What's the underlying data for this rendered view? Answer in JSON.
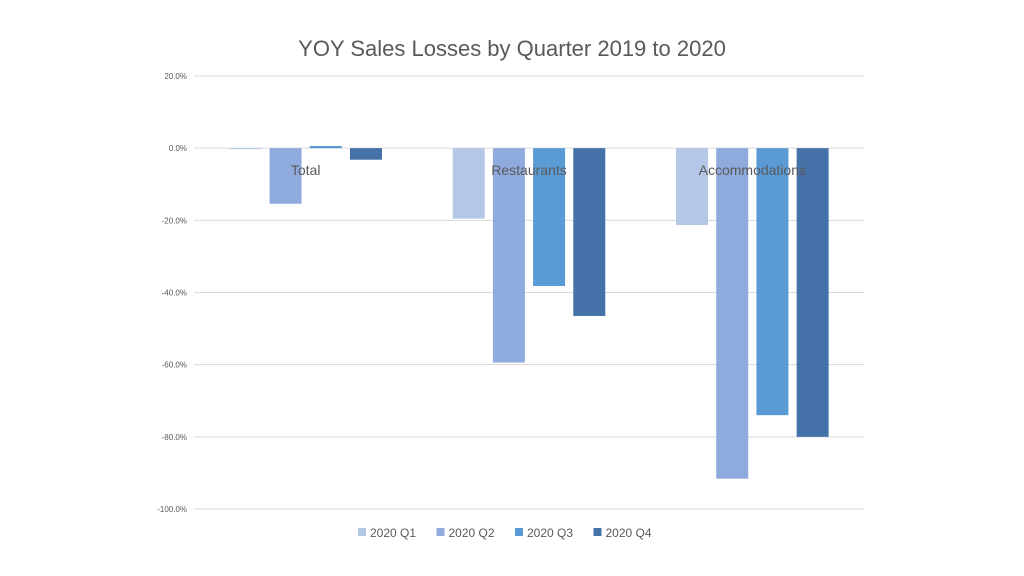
{
  "chart_data": {
    "type": "bar",
    "title": "YOY Sales Losses by Quarter 2019 to 2020",
    "categories": [
      "Total",
      "Restaurants",
      "Accommodations"
    ],
    "series": [
      {
        "name": "2020 Q1",
        "color": "#b4c7e7",
        "values": [
          -0.2,
          -19.5,
          -21.3
        ]
      },
      {
        "name": "2020 Q2",
        "color": "#8faadc",
        "values": [
          -15.4,
          -59.4,
          -91.6
        ]
      },
      {
        "name": "2020 Q3",
        "color": "#5b9bd5",
        "values": [
          0.6,
          -38.2,
          -74.0
        ]
      },
      {
        "name": "2020 Q4",
        "color": "#4472a8",
        "values": [
          -3.2,
          -46.5,
          -80.0
        ]
      }
    ],
    "ylim": [
      -100,
      20
    ],
    "yticks": [
      20,
      0,
      -20,
      -40,
      -60,
      -80,
      -100
    ],
    "ytick_labels": [
      "20.0%",
      "0.0%",
      "-20.0%",
      "-40.0%",
      "-60.0%",
      "-80.0%",
      "-100.0%"
    ],
    "grid": true,
    "legend_position": "bottom",
    "category_label_position": "on zero line"
  }
}
